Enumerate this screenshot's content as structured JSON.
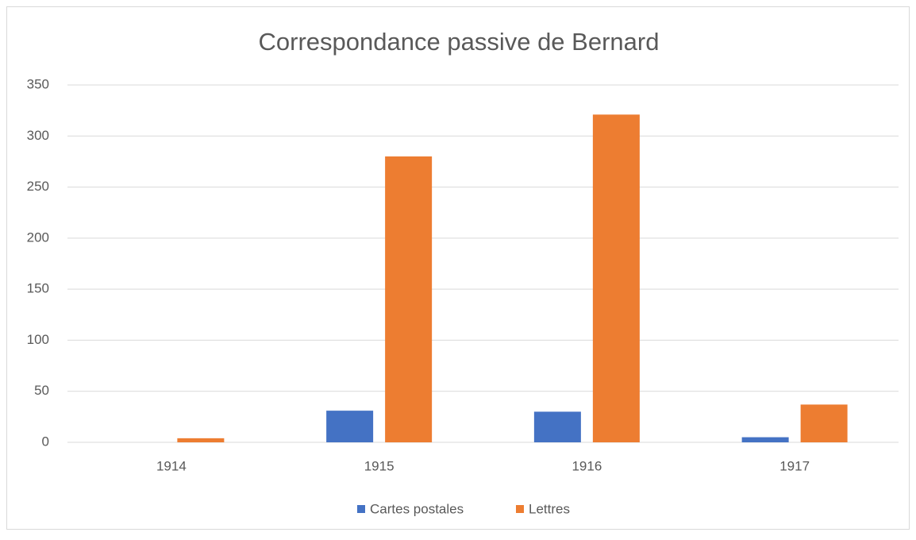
{
  "chart_data": {
    "type": "bar",
    "title": "Correspondance passive de Bernard",
    "categories": [
      "1914",
      "1915",
      "1916",
      "1917"
    ],
    "series": [
      {
        "name": "Cartes postales",
        "color": "#4472c4",
        "values": [
          0,
          31,
          30,
          5
        ]
      },
      {
        "name": "Lettres",
        "color": "#ed7d31",
        "values": [
          4,
          280,
          321,
          37
        ]
      }
    ],
    "ylim": [
      0,
      350
    ],
    "yticks": [
      0,
      50,
      100,
      150,
      200,
      250,
      300,
      350
    ],
    "grid": true,
    "legend": "bottom"
  }
}
